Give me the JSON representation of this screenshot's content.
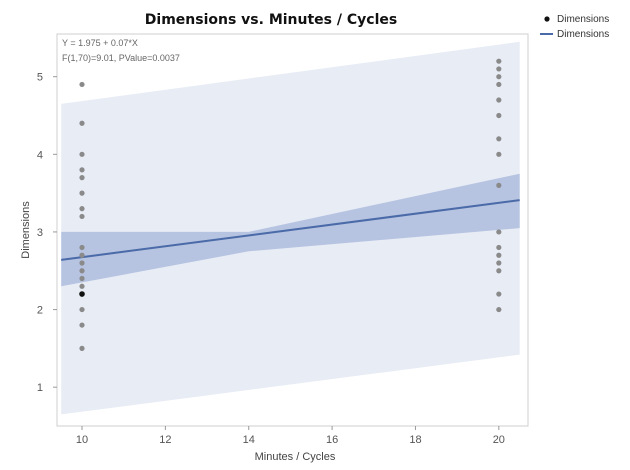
{
  "chart_data": {
    "type": "scatter",
    "title": "Dimensions vs. Minutes / Cycles",
    "xlabel": "Minutes / Cycles",
    "ylabel": "Dimensions",
    "xlim": [
      9.4,
      20.7
    ],
    "ylim": [
      0.5,
      5.55
    ],
    "xticks": [
      10,
      12,
      14,
      16,
      18,
      20
    ],
    "yticks": [
      1,
      2,
      3,
      4,
      5
    ],
    "annotations": [
      "Y = 1.975 + 0.07*X",
      "F(1,70)=9.01, PValue=0.0037"
    ],
    "legend": {
      "placement": "top-right-outside",
      "entries": [
        {
          "label": "Dimensions",
          "kind": "marker"
        },
        {
          "label": "Dimensions",
          "kind": "line"
        }
      ]
    },
    "series": [
      {
        "name": "Dimensions",
        "kind": "points",
        "color": "#8a8a8a",
        "points": [
          {
            "x": 10,
            "y": 4.9
          },
          {
            "x": 10,
            "y": 4.4
          },
          {
            "x": 10,
            "y": 4.0
          },
          {
            "x": 10,
            "y": 3.8
          },
          {
            "x": 10,
            "y": 3.7
          },
          {
            "x": 10,
            "y": 3.5
          },
          {
            "x": 10,
            "y": 3.3
          },
          {
            "x": 10,
            "y": 3.2
          },
          {
            "x": 10,
            "y": 2.8
          },
          {
            "x": 10,
            "y": 2.7
          },
          {
            "x": 10,
            "y": 2.6
          },
          {
            "x": 10,
            "y": 2.5
          },
          {
            "x": 10,
            "y": 2.4
          },
          {
            "x": 10,
            "y": 2.3
          },
          {
            "x": 10,
            "y": 2.2
          },
          {
            "x": 10,
            "y": 2.0
          },
          {
            "x": 10,
            "y": 1.8
          },
          {
            "x": 10,
            "y": 1.5
          },
          {
            "x": 20,
            "y": 5.2
          },
          {
            "x": 20,
            "y": 5.1
          },
          {
            "x": 20,
            "y": 5.0
          },
          {
            "x": 20,
            "y": 4.9
          },
          {
            "x": 20,
            "y": 4.7
          },
          {
            "x": 20,
            "y": 4.5
          },
          {
            "x": 20,
            "y": 4.2
          },
          {
            "x": 20,
            "y": 4.0
          },
          {
            "x": 20,
            "y": 3.6
          },
          {
            "x": 20,
            "y": 3.0
          },
          {
            "x": 20,
            "y": 2.8
          },
          {
            "x": 20,
            "y": 2.7
          },
          {
            "x": 20,
            "y": 2.6
          },
          {
            "x": 20,
            "y": 2.5
          },
          {
            "x": 20,
            "y": 2.2
          },
          {
            "x": 20,
            "y": 2.0
          }
        ],
        "highlight": {
          "x": 10,
          "y": 2.2,
          "color": "#111111"
        }
      },
      {
        "name": "Dimensions",
        "kind": "fit-line",
        "color": "#4a6aa8",
        "intercept": 1.975,
        "slope": 0.07,
        "x": [
          9.5,
          20.5
        ],
        "confidence_band": {
          "color": "#6f86c4",
          "x": [
            9.5,
            14,
            20.5
          ],
          "lower": [
            2.3,
            2.75,
            3.05
          ],
          "upper": [
            3.0,
            3.0,
            3.75
          ]
        },
        "prediction_band": {
          "color": "#dfe5f1",
          "x": [
            9.5,
            20.5
          ],
          "lower": [
            0.65,
            1.42
          ],
          "upper": [
            4.65,
            5.45
          ]
        }
      }
    ]
  }
}
